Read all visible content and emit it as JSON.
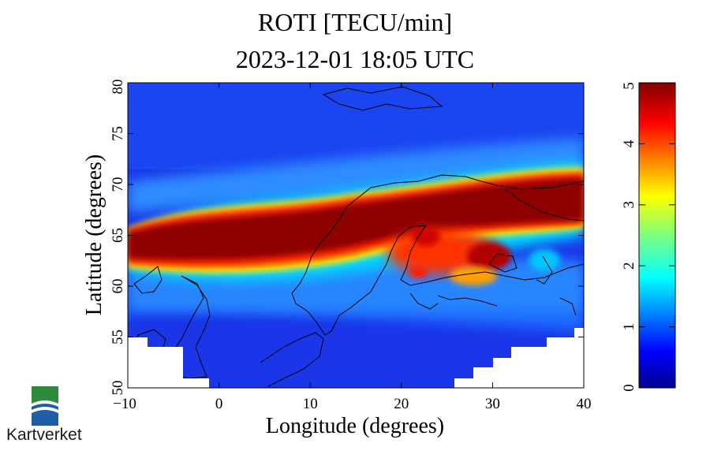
{
  "title": "ROTI [TECU/min]",
  "subtitle": "2023-12-01 18:05 UTC",
  "logo_text": "Kartverket",
  "logo_colors": {
    "top": "#2e8b3e",
    "bottom": "#1f5fa8"
  },
  "map": {
    "xlabel": "Longitude (degrees)",
    "ylabel": "Latitude (degrees)",
    "xlim": [
      -10,
      40
    ],
    "ylim": [
      50,
      80
    ],
    "x_ticks": [
      -10,
      0,
      10,
      20,
      30,
      40
    ],
    "y_ticks": [
      50,
      55,
      60,
      65,
      70,
      75,
      80
    ],
    "colormap": "jet",
    "no_data_color": "#ffffff"
  },
  "colorbar": {
    "range": [
      0,
      5
    ],
    "ticks": [
      0,
      1,
      2,
      3,
      4,
      5
    ]
  }
}
